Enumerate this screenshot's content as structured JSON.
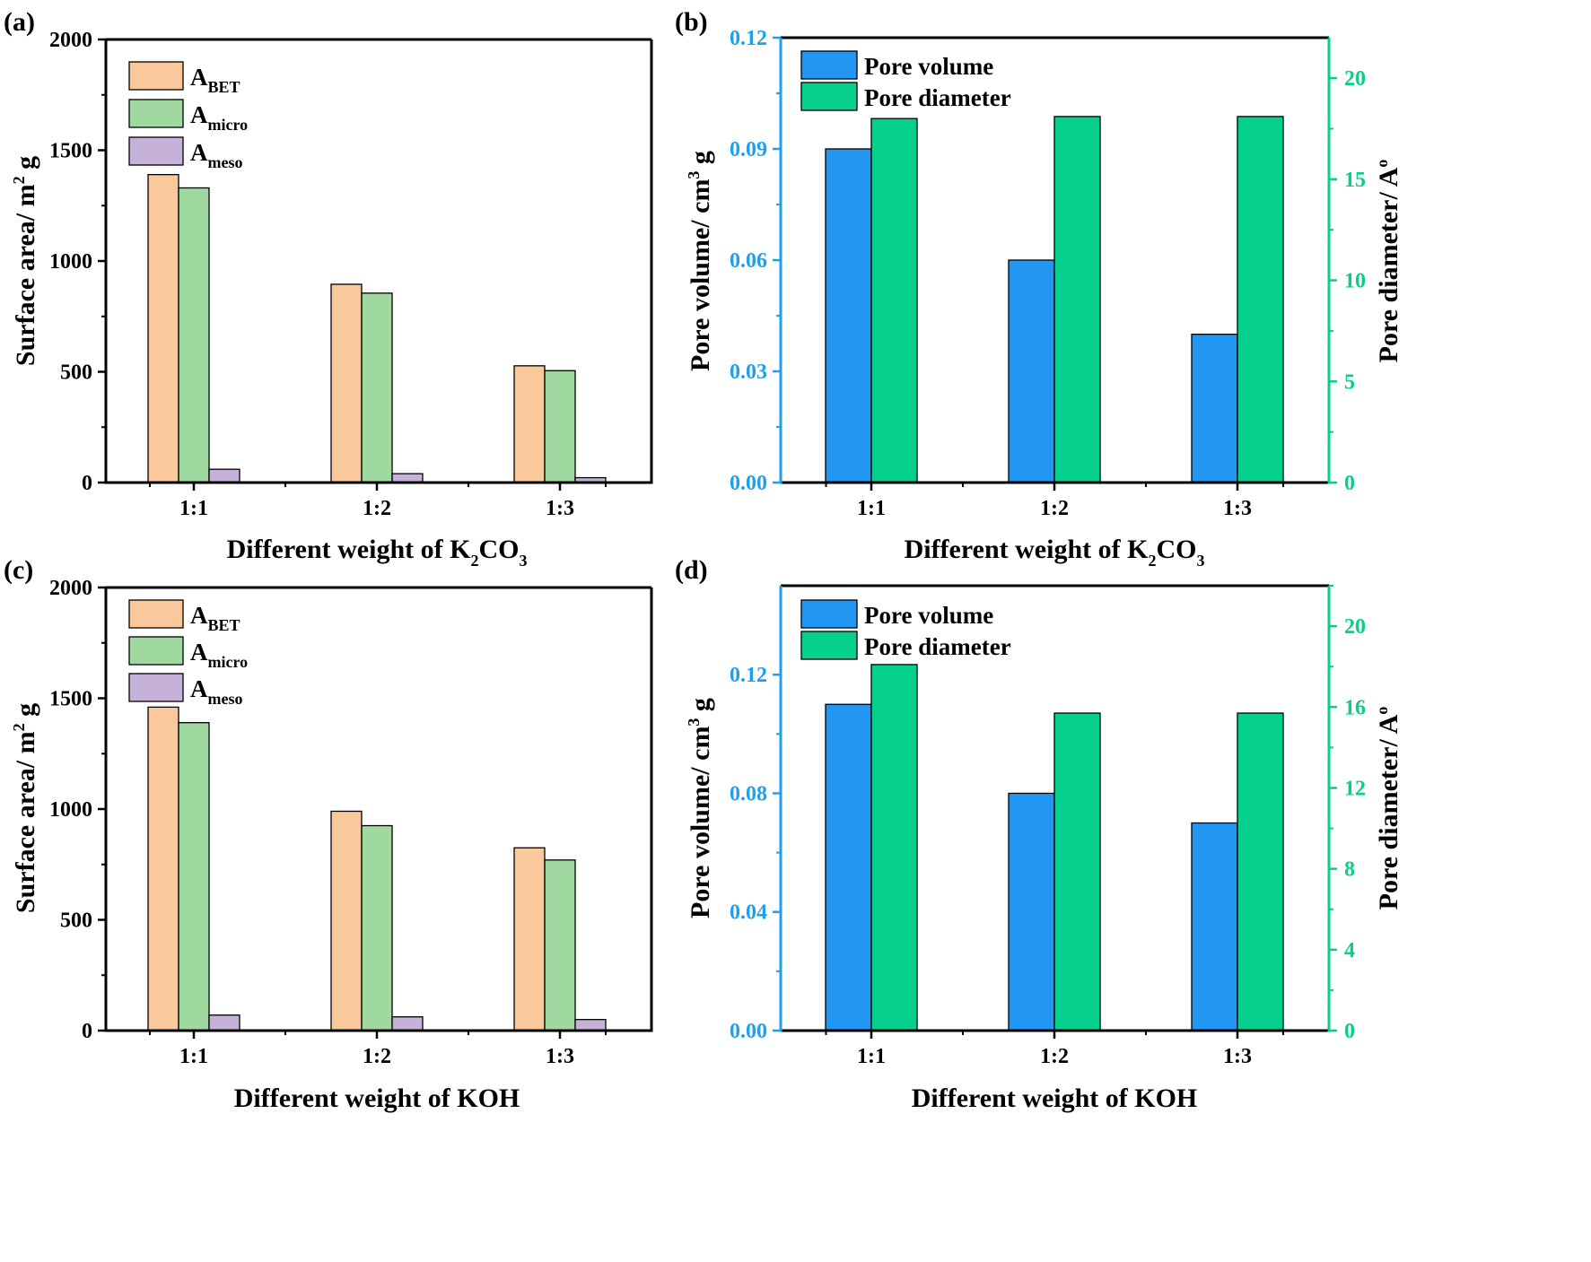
{
  "colors": {
    "abet": "#f9c89b",
    "amicro": "#9fd9a0",
    "ameso": "#c6b2d8",
    "pore_volume": "#2196f3",
    "pore_diameter": "#05d08e",
    "left_axis_blue": "#1ea0ee",
    "right_axis_green": "#06cf8c",
    "axis_black": "#000000"
  },
  "chart_data": [
    {
      "panel": "(a)",
      "type": "bar",
      "categories": [
        "1:1",
        "1:2",
        "1:3"
      ],
      "series": [
        {
          "name": "A_BET",
          "base": "A",
          "sub": "BET",
          "color_key": "abet",
          "values": [
            1390,
            895,
            527
          ]
        },
        {
          "name": "A_micro",
          "base": "A",
          "sub": "micro",
          "color_key": "amicro",
          "values": [
            1330,
            855,
            505
          ]
        },
        {
          "name": "A_meso",
          "base": "A",
          "sub": "meso",
          "color_key": "ameso",
          "values": [
            60,
            40,
            22
          ]
        }
      ],
      "ylabel": {
        "before": "Surface area/ m",
        "sup": "2",
        "after": " g"
      },
      "xlabel": {
        "before": "Different weight of K",
        "sub1": "2",
        "mid": "CO",
        "sub2": "3"
      },
      "ylim": [
        0,
        2000
      ],
      "yticks": [
        0,
        500,
        1000,
        1500,
        2000
      ],
      "legend": "top-left"
    },
    {
      "panel": "(b)",
      "type": "bar",
      "categories": [
        "1:1",
        "1:2",
        "1:3"
      ],
      "series": [
        {
          "name": "Pore volume",
          "axis": "left",
          "color_key": "pore_volume",
          "values": [
            0.09,
            0.06,
            0.04
          ]
        },
        {
          "name": "Pore diameter",
          "axis": "right",
          "color_key": "pore_diameter",
          "values": [
            18,
            18.1,
            18.1
          ]
        }
      ],
      "ylabel": {
        "before": "Pore volume/ cm",
        "sup": "3",
        "after": " g"
      },
      "y2label": {
        "before": "Pore diameter/ A",
        "sup": "o",
        "after": ""
      },
      "xlabel": {
        "before": "Different weight of K",
        "sub1": "2",
        "mid": "CO",
        "sub2": "3"
      },
      "ylim": [
        0,
        0.12
      ],
      "yticks": [
        "0.00",
        "0.03",
        "0.06",
        "0.09",
        "0.12"
      ],
      "y2lim": [
        0,
        22
      ],
      "y2ticks": [
        "0",
        "5",
        "10",
        "15",
        "20"
      ],
      "legend": "top-left"
    },
    {
      "panel": "(c)",
      "type": "bar",
      "categories": [
        "1:1",
        "1:2",
        "1:3"
      ],
      "series": [
        {
          "name": "A_BET",
          "base": "A",
          "sub": "BET",
          "color_key": "abet",
          "values": [
            1460,
            990,
            825
          ]
        },
        {
          "name": "A_micro",
          "base": "A",
          "sub": "micro",
          "color_key": "amicro",
          "values": [
            1390,
            925,
            770
          ]
        },
        {
          "name": "A_meso",
          "base": "A",
          "sub": "meso",
          "color_key": "ameso",
          "values": [
            70,
            62,
            50
          ]
        }
      ],
      "ylabel": {
        "before": "Surface area/ m",
        "sup": "2",
        "after": " g"
      },
      "xlabel": {
        "before": "Different weight of KOH"
      },
      "ylim": [
        0,
        2000
      ],
      "yticks": [
        0,
        500,
        1000,
        1500,
        2000
      ],
      "legend": "top-left"
    },
    {
      "panel": "(d)",
      "type": "bar",
      "categories": [
        "1:1",
        "1:2",
        "1:3"
      ],
      "series": [
        {
          "name": "Pore volume",
          "axis": "left",
          "color_key": "pore_volume",
          "values": [
            0.11,
            0.08,
            0.07
          ]
        },
        {
          "name": "Pore diameter",
          "axis": "right",
          "color_key": "pore_diameter",
          "values": [
            18.1,
            15.7,
            15.7
          ]
        }
      ],
      "ylabel": {
        "before": "Pore volume/ cm",
        "sup": "3",
        "after": " g"
      },
      "y2label": {
        "before": "Pore diameter/ A",
        "sup": "o",
        "after": ""
      },
      "xlabel": {
        "before": "Different weight of KOH"
      },
      "ylim": [
        0,
        0.15
      ],
      "yticks": [
        "0.00",
        "0.04",
        "0.08",
        "0.12"
      ],
      "y2lim": [
        0,
        22
      ],
      "y2ticks": [
        "0",
        "4",
        "8",
        "12",
        "16",
        "20"
      ],
      "legend": "top-left"
    }
  ]
}
